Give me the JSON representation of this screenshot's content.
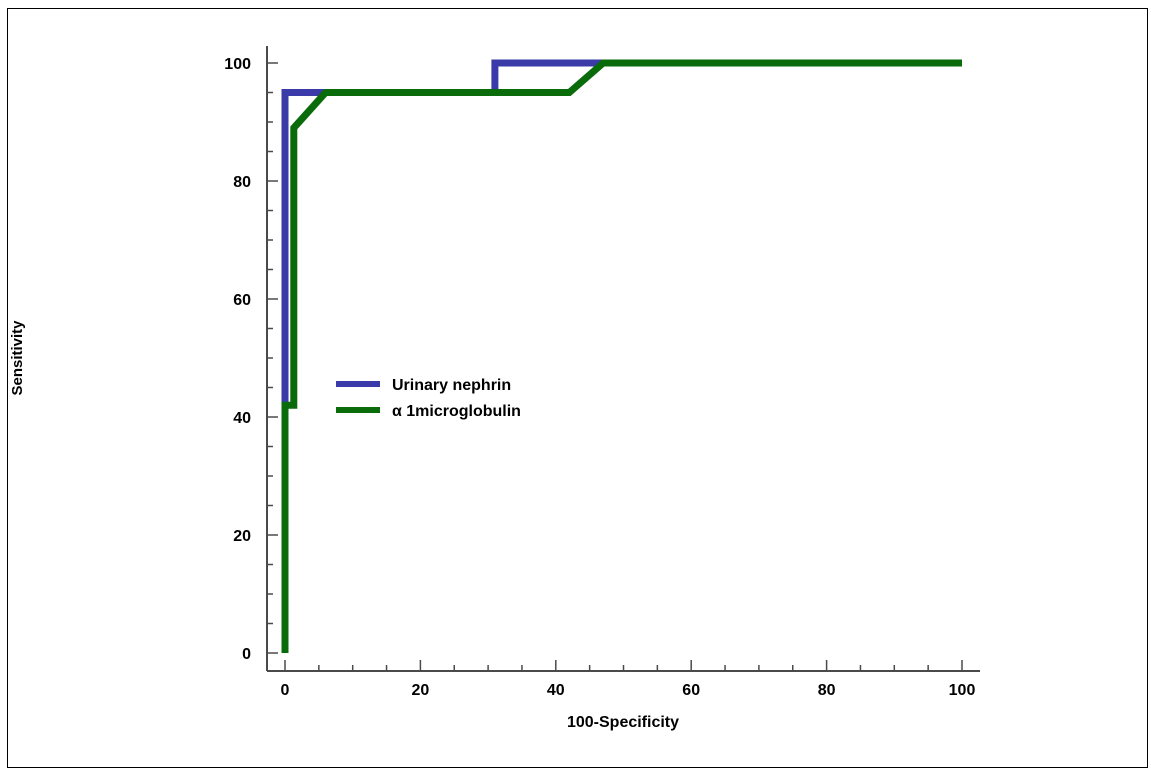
{
  "chart_data": {
    "type": "line",
    "xlabel": "100-Specificity",
    "ylabel": "Sensitivity",
    "xlim": [
      0,
      100
    ],
    "ylim": [
      0,
      100
    ],
    "x_ticks": [
      0,
      20,
      40,
      60,
      80,
      100
    ],
    "y_ticks": [
      0,
      20,
      40,
      60,
      80,
      100
    ],
    "x_tick_labels": [
      "0",
      "20",
      "40",
      "60",
      "80",
      "100"
    ],
    "y_tick_labels": [
      "0",
      "20",
      "40",
      "60",
      "80",
      "100"
    ],
    "legend_position": "center-left",
    "grid": false,
    "series": [
      {
        "name": "Urinary nephrin",
        "color": "#3a3aa8",
        "x": [
          0,
          0,
          0,
          5,
          31,
          31,
          100
        ],
        "y": [
          0,
          42,
          95,
          95,
          95,
          100,
          100
        ]
      },
      {
        "name": "α 1microglobulin",
        "color": "#0a6b0a",
        "x": [
          0,
          0,
          1.3,
          1.3,
          6,
          42,
          47,
          100
        ],
        "y": [
          0,
          42,
          42,
          89,
          95,
          95,
          100,
          100
        ]
      }
    ]
  }
}
